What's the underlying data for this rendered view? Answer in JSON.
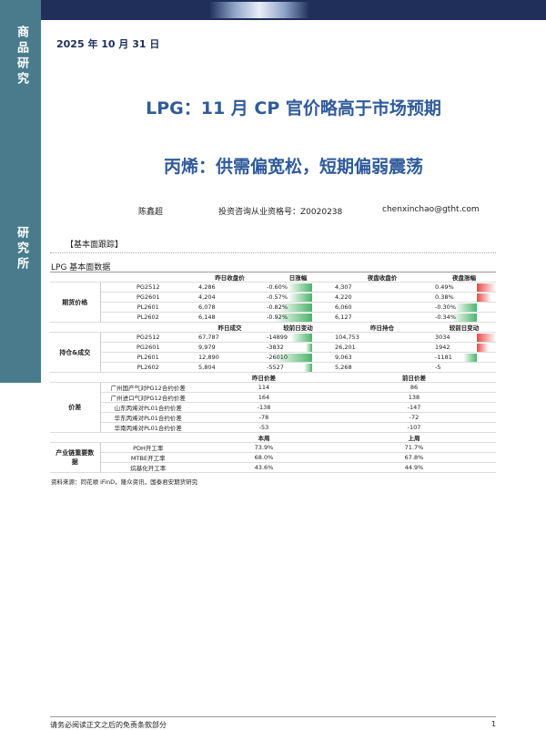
{
  "header": {
    "sidebar_top": "商品研究",
    "sidebar_bottom": "研究所",
    "date": "2025 年 10 月 31 日"
  },
  "title": "LPG：11 月 CP 官价略高于市场预期",
  "subtitle": "丙烯：供需偏宽松，短期偏弱震荡",
  "author": {
    "name": "陈鑫超",
    "license": "投资咨询从业资格号：Z0020238",
    "email": "chenxinchao@gtht.com"
  },
  "section": "【基本面跟踪】",
  "table_title": "LPG 基本面数据",
  "table": {
    "sections": [
      {
        "label": "期货价格",
        "header": [
          "昨日收盘价",
          "日涨幅",
          "夜盘收盘价",
          "夜盘涨幅"
        ],
        "rows": [
          [
            "PG2512",
            "4,286",
            "-0.60%",
            "4,307",
            "0.49%"
          ],
          [
            "PG2601",
            "4,204",
            "-0.57%",
            "4,220",
            "0.38%"
          ],
          [
            "PL2601",
            "6,078",
            "-0.82%",
            "6,060",
            "-0.30%"
          ],
          [
            "PL2602",
            "6,148",
            "-0.92%",
            "6,127",
            "-0.34%"
          ]
        ]
      },
      {
        "label": "持仓&成交",
        "header": [
          "昨日成交",
          "较前日变动",
          "昨日持仓",
          "较前日变动"
        ],
        "rows": [
          [
            "PG2512",
            "67,787",
            "-14899",
            "104,753",
            "3034"
          ],
          [
            "PG2601",
            "9,979",
            "-3832",
            "26,201",
            "1942"
          ],
          [
            "PL2601",
            "12,890",
            "-26010",
            "9,063",
            "-1181"
          ],
          [
            "PL2602",
            "5,804",
            "-5527",
            "5,268",
            "-5"
          ]
        ]
      },
      {
        "label": "价差",
        "header": [
          "昨日价差",
          "前日价差"
        ],
        "rows": [
          [
            "广州国产气对PG12合约价差",
            "114",
            "86"
          ],
          [
            "广州进口气对PG12合约价差",
            "164",
            "138"
          ],
          [
            "山东丙烯对PL01合约价差",
            "-138",
            "-147"
          ],
          [
            "华东丙烯对PL01合约价差",
            "-78",
            "-72"
          ],
          [
            "华南丙烯对PL01合约价差",
            "-53",
            "-107"
          ]
        ]
      },
      {
        "label": "产业链重要数据",
        "header": [
          "本周",
          "上周"
        ],
        "rows": [
          [
            "PDH开工率",
            "73.9%",
            "71.7%"
          ],
          [
            "MTBE开工率",
            "68.0%",
            "67.8%"
          ],
          [
            "烷基化开工率",
            "43.6%",
            "44.9%"
          ]
        ]
      }
    ]
  },
  "source": "资料来源：同花顺 iFinD，隆众资讯，国泰君安期货研究",
  "footer": {
    "disclaimer": "请务必阅读正文之后的免责条款部分",
    "page": "1"
  }
}
